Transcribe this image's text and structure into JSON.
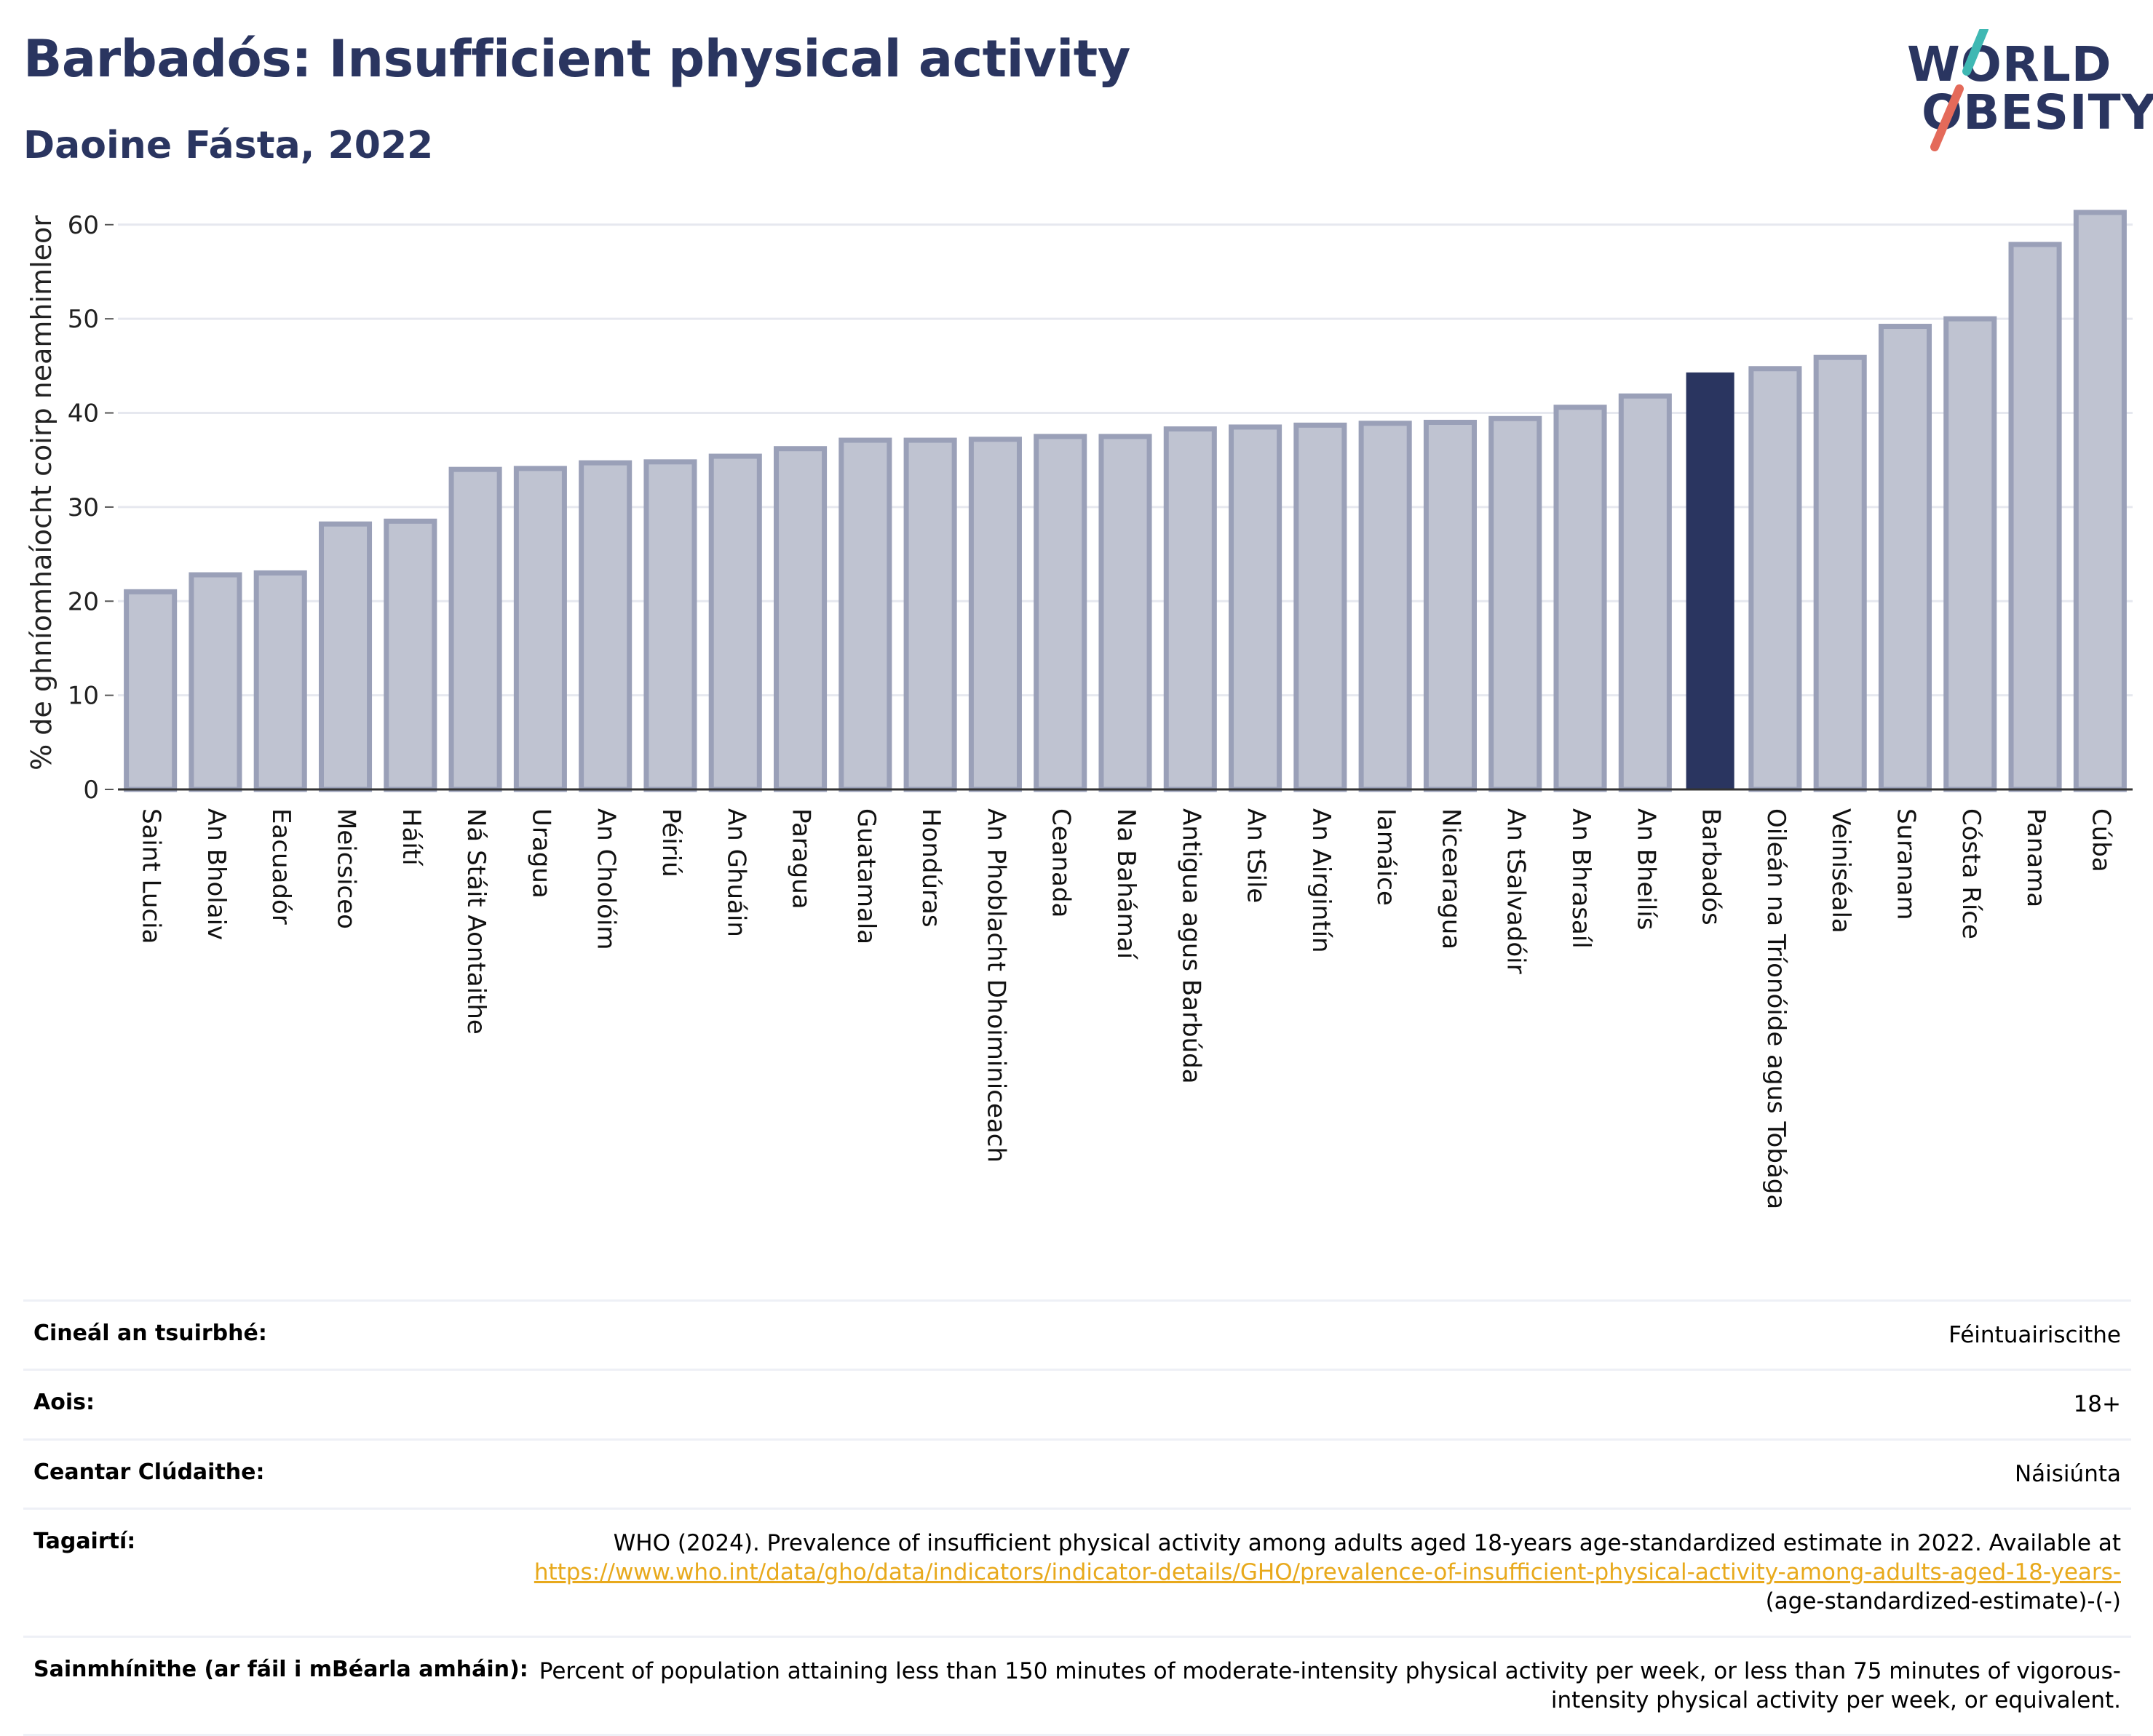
{
  "header": {
    "title": "Barbadós: Insufficient physical activity",
    "subtitle": "Daoine Fásta, 2022"
  },
  "logo": {
    "line1": "WORLD",
    "line2": "OBESITY"
  },
  "colors": {
    "title": "#2a3560",
    "bar": "#bfc3d1",
    "bar_border": "#9aa0b8",
    "highlight": "#2a3560",
    "link": "#e8a91c",
    "logo_slash_top": "#3fb8b3",
    "logo_slash_bottom": "#e46a5a"
  },
  "chart_data": {
    "type": "bar",
    "ylabel": "% de ghníomhaíocht coirp neamhimleor",
    "ylim": [
      0,
      63
    ],
    "yticks": [
      0,
      10,
      20,
      30,
      40,
      50,
      60
    ],
    "grid": true,
    "highlight": "Barbadós",
    "categories": [
      "Saint Lucia",
      "An Bholaiv",
      "Eacuadór",
      "Meicsiceo",
      "Háítí",
      "Ná Stáit Aontaithe",
      "Uragua",
      "An Cholóim",
      "Péiriú",
      "An Ghuáin",
      "Paragua",
      "Guatamala",
      "Hondúras",
      "An Phoblacht Dhoiminiceach",
      "Ceanada",
      "Na Bahámaí",
      "Antigua agus Barbúda",
      "An tSile",
      "An Airgintín",
      "Iamáice",
      "Nicearagua",
      "An tSalvadóir",
      "An Bhrasaíl",
      "An Bheilís",
      "Barbadós",
      "Oileán na Tríonóide agus Tobága",
      "Veiniséala",
      "Suranam",
      "Cósta Ríce",
      "Panama",
      "Cúba"
    ],
    "values": [
      21.0,
      22.8,
      23.0,
      28.2,
      28.5,
      34.0,
      34.1,
      34.7,
      34.8,
      35.4,
      36.2,
      37.1,
      37.1,
      37.2,
      37.5,
      37.5,
      38.3,
      38.5,
      38.7,
      38.9,
      39.0,
      39.4,
      40.6,
      41.8,
      44.3,
      44.7,
      45.9,
      49.2,
      50.0,
      57.9,
      61.3
    ]
  },
  "info": {
    "rows": [
      {
        "label": "Cineál an tsuirbhé:",
        "value": "Féintuairiscithe"
      },
      {
        "label": "Aois:",
        "value": "18+"
      },
      {
        "label": "Ceantar Clúdaithe:",
        "value": "Náisiúnta"
      }
    ],
    "ref_label": "Tagairtí:",
    "ref_text": "WHO (2024). Prevalence of insufficient physical activity among adults aged 18-years age-standardized estimate in 2022. Available at",
    "ref_link": "https://www.who.int/data/gho/data/indicators/indicator-details/GHO/prevalence-of-insufficient-physical-activity-among-adults-aged-18-years-",
    "ref_tail": "(age-standardized-estimate)-(-)",
    "def_label": "Sainmhínithe (ar fáil i mBéarla amháin):",
    "def_text": "Percent of population attaining less than 150 minutes of moderate-intensity physical activity per week, or less than 75 minutes of vigorous-intensity physical activity per week, or equivalent."
  }
}
